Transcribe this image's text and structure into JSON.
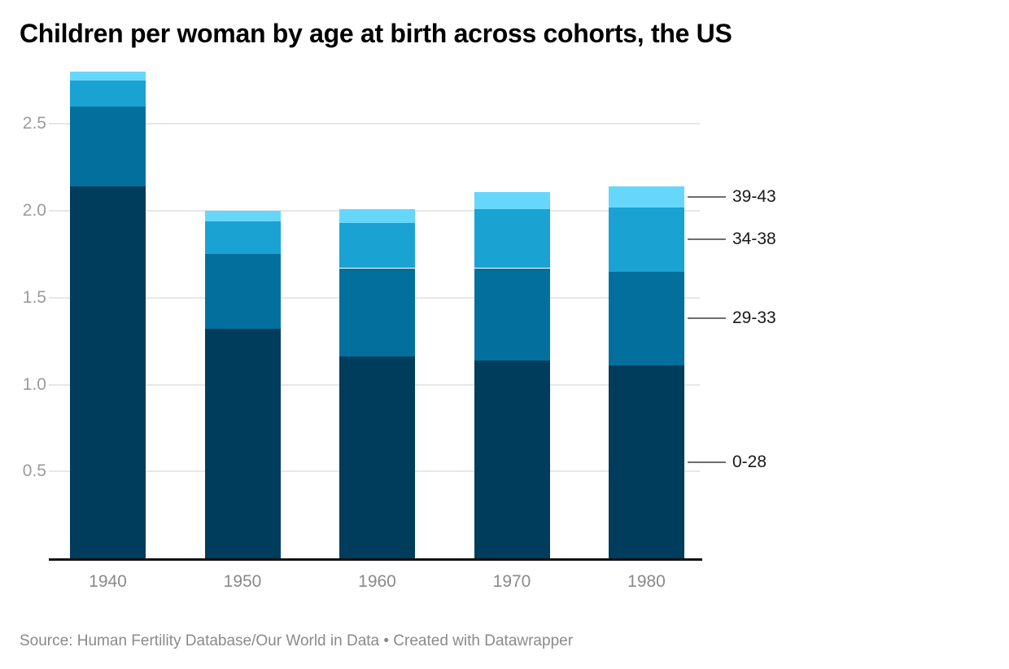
{
  "header": {
    "title": "Children per woman by age at birth across cohorts, the US"
  },
  "footer": {
    "text": "Source: Human Fertility Database/Our World in Data • Created with Datawrapper"
  },
  "colors": {
    "accent_dark_navy": "#003C5C",
    "accent_teal": "#036F9C",
    "accent_cyan": "#1AA2D3",
    "accent_sky": "#67D6FB",
    "gridline": "#e7e7e7",
    "axis_line": "#111111",
    "tick_label": "#9b9b9b",
    "x_label": "#8a8a8a",
    "leader_line": "#6e6e6e",
    "legend_text": "#191919"
  },
  "chart_data": {
    "type": "bar",
    "stacked": true,
    "title": "Children per woman by age at birth across cohorts, the US",
    "xlabel": "",
    "ylabel": "",
    "categories": [
      "1940",
      "1950",
      "1960",
      "1970",
      "1980"
    ],
    "series": [
      {
        "name": "0-28",
        "color": "#003C5C",
        "values": [
          2.14,
          1.32,
          1.16,
          1.14,
          1.11
        ]
      },
      {
        "name": "29-33",
        "color": "#036F9C",
        "values": [
          0.46,
          0.43,
          0.51,
          0.53,
          0.54
        ]
      },
      {
        "name": "34-38",
        "color": "#1AA2D3",
        "values": [
          0.15,
          0.19,
          0.26,
          0.34,
          0.37
        ]
      },
      {
        "name": "39-43",
        "color": "#67D6FB",
        "values": [
          0.05,
          0.06,
          0.08,
          0.1,
          0.12
        ]
      }
    ],
    "totals": [
      2.8,
      2.0,
      2.01,
      2.11,
      2.14
    ],
    "y_ticks": [
      0.5,
      1.0,
      1.5,
      2.0,
      2.5
    ],
    "y_tick_labels": [
      "0.5",
      "1.0",
      "1.5",
      "2.0",
      "2.5"
    ],
    "ylim": [
      0,
      2.85
    ],
    "grid": "horizontal",
    "legend": {
      "position": "right",
      "entries": [
        "39-43",
        "34-38",
        "29-33",
        "0-28"
      ]
    }
  }
}
